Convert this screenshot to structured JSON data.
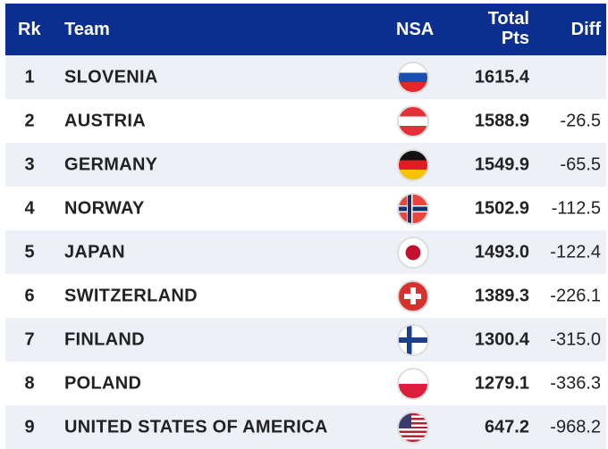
{
  "header": {
    "rank": "Rk",
    "team": "Team",
    "nsa": "NSA",
    "total_line1": "Total",
    "total_line2": "Pts",
    "diff": "Diff"
  },
  "rows": [
    {
      "rank": "1",
      "team": "SLOVENIA",
      "flag": "slovenia-flag-icon",
      "pts": "1615.4",
      "diff": ""
    },
    {
      "rank": "2",
      "team": "AUSTRIA",
      "flag": "austria-flag-icon",
      "pts": "1588.9",
      "diff": "-26.5"
    },
    {
      "rank": "3",
      "team": "GERMANY",
      "flag": "germany-flag-icon",
      "pts": "1549.9",
      "diff": "-65.5"
    },
    {
      "rank": "4",
      "team": "NORWAY",
      "flag": "norway-flag-icon",
      "pts": "1502.9",
      "diff": "-112.5"
    },
    {
      "rank": "5",
      "team": "JAPAN",
      "flag": "japan-flag-icon",
      "pts": "1493.0",
      "diff": "-122.4"
    },
    {
      "rank": "6",
      "team": "SWITZERLAND",
      "flag": "switzerland-flag-icon",
      "pts": "1389.3",
      "diff": "-226.1"
    },
    {
      "rank": "7",
      "team": "FINLAND",
      "flag": "finland-flag-icon",
      "pts": "1300.4",
      "diff": "-315.0"
    },
    {
      "rank": "8",
      "team": "POLAND",
      "flag": "poland-flag-icon",
      "pts": "1279.1",
      "diff": "-336.3"
    },
    {
      "rank": "9",
      "team": "UNITED STATES OF AMERICA",
      "flag": "usa-flag-icon",
      "pts": "647.2",
      "diff": "-968.2"
    }
  ]
}
